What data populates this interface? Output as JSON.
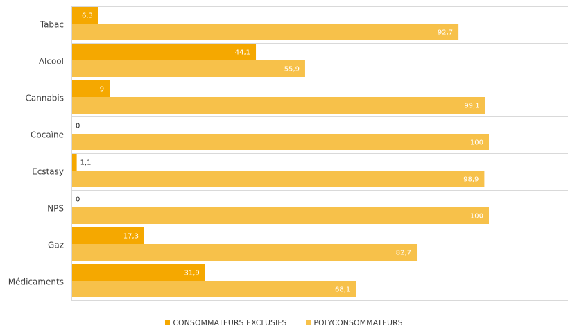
{
  "chart_data": {
    "type": "bar",
    "orientation": "horizontal",
    "categories": [
      "Tabac",
      "Alcool",
      "Cannabis",
      "Cocaïne",
      "Ecstasy",
      "NPS",
      "Gaz",
      "Médicaments"
    ],
    "series": [
      {
        "name": "CONSOMMATEURS EXCLUSIFS",
        "color": "#F5A800",
        "values": [
          6.3,
          44.1,
          9,
          0,
          1.1,
          0,
          17.3,
          31.9
        ],
        "labels": [
          "6,3",
          "44,1",
          "9",
          "0",
          "1,1",
          "0",
          "17,3",
          "31,9"
        ]
      },
      {
        "name": "POLYCONSOMMATEURS",
        "color": "#F7C14A",
        "values": [
          92.7,
          55.9,
          99.1,
          100,
          98.9,
          100,
          82.7,
          68.1
        ],
        "labels": [
          "92,7",
          "55,9",
          "99,1",
          "100",
          "98,9",
          "100",
          "82,7",
          "68,1"
        ]
      }
    ],
    "xlim": [
      0,
      100
    ],
    "grid": "horizontal separators",
    "legend_position": "bottom"
  }
}
